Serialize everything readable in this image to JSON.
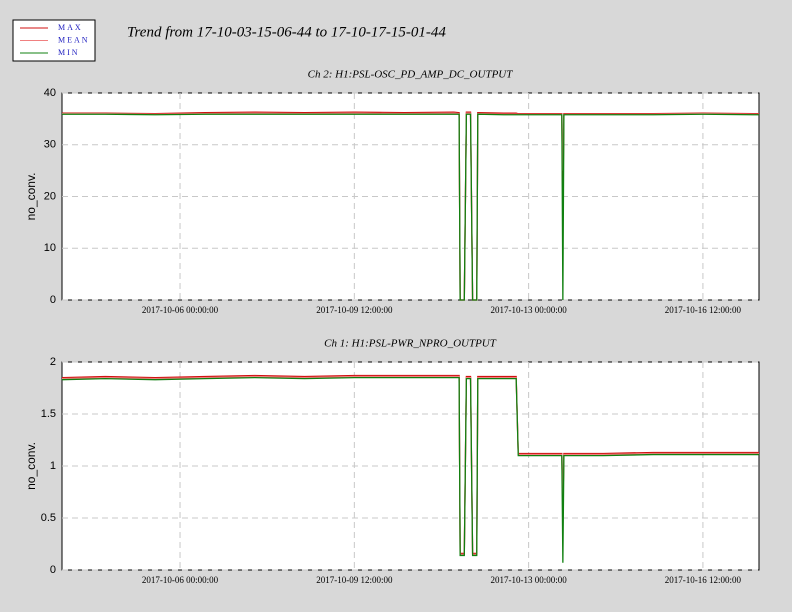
{
  "title": "Trend from 17-10-03-15-06-44 to 17-10-17-15-01-44",
  "chart_data": [
    {
      "type": "line",
      "title": "Ch 2: H1:PSL-OSC_PD_AMP_DC_OUTPUT",
      "y_label": "no_conv.",
      "x": [
        "2017-10-03 15:06:44",
        "2017-10-04 12:00:00",
        "2017-10-05 12:00:00",
        "2017-10-06 12:00:00",
        "2017-10-07 12:00:00",
        "2017-10-08 12:00:00",
        "2017-10-09 12:00:00",
        "2017-10-10 12:00:00",
        "2017-10-11 12:00:00",
        "2017-10-11 14:30:00",
        "2017-10-11 15:00:00",
        "2017-10-11 17:00:00",
        "2017-10-11 18:00:00",
        "2017-10-11 20:00:00",
        "2017-10-11 21:00:00",
        "2017-10-11 23:00:00",
        "2017-10-11 23:30:00",
        "2017-10-12 12:00:00",
        "2017-10-12 18:00:00",
        "2017-10-12 19:00:00",
        "2017-10-13 16:00:00",
        "2017-10-13 16:30:00",
        "2017-10-13 17:00:00",
        "2017-10-14 12:00:00",
        "2017-10-15 12:00:00",
        "2017-10-16 12:00:00",
        "2017-10-17 12:00:00",
        "2017-10-17 15:01:44"
      ],
      "series": [
        {
          "name": "MAX",
          "color": "#d01010",
          "values": [
            36.1,
            36.1,
            36.0,
            36.2,
            36.3,
            36.2,
            36.3,
            36.2,
            36.3,
            36.2,
            0,
            0,
            36.3,
            36.3,
            0,
            0,
            36.2,
            36.1,
            36.1,
            36.0,
            36.0,
            18,
            36.0,
            36.0,
            36.0,
            36.1,
            36.0,
            36.0
          ]
        },
        {
          "name": "MEAN",
          "color": "#f08080",
          "values": [
            36.0,
            36.0,
            35.9,
            36.0,
            36.1,
            36.0,
            36.1,
            36.0,
            36.1,
            36.0,
            0,
            0,
            36.1,
            36.1,
            0,
            0,
            36.0,
            35.9,
            35.9,
            35.9,
            35.9,
            25,
            35.9,
            35.9,
            35.9,
            36.0,
            35.9,
            35.9
          ]
        },
        {
          "name": "MIN",
          "color": "#108010",
          "values": [
            35.9,
            35.9,
            35.8,
            35.9,
            35.9,
            35.9,
            35.9,
            35.9,
            35.9,
            35.9,
            0,
            0,
            35.9,
            35.9,
            0,
            0,
            35.9,
            35.8,
            35.8,
            35.8,
            35.8,
            0,
            35.8,
            35.8,
            35.8,
            35.9,
            35.8,
            35.8
          ]
        }
      ],
      "xlim": [
        "2017-10-03 15:06:44",
        "2017-10-17 15:01:44"
      ],
      "xticks": [
        "2017-10-06 00:00:00",
        "2017-10-09 12:00:00",
        "2017-10-13 00:00:00",
        "2017-10-16 12:00:00"
      ],
      "ylim": [
        0,
        40
      ],
      "yticks": [
        0,
        10,
        20,
        30,
        40
      ],
      "grid": true
    },
    {
      "type": "line",
      "title": "Ch 1: H1:PSL-PWR_NPRO_OUTPUT",
      "y_label": "no_conv.",
      "x": [
        "2017-10-03 15:06:44",
        "2017-10-04 12:00:00",
        "2017-10-05 12:00:00",
        "2017-10-06 12:00:00",
        "2017-10-07 12:00:00",
        "2017-10-08 12:00:00",
        "2017-10-09 12:00:00",
        "2017-10-10 12:00:00",
        "2017-10-11 12:00:00",
        "2017-10-11 14:30:00",
        "2017-10-11 15:00:00",
        "2017-10-11 17:00:00",
        "2017-10-11 18:00:00",
        "2017-10-11 20:00:00",
        "2017-10-11 21:00:00",
        "2017-10-11 23:00:00",
        "2017-10-11 23:30:00",
        "2017-10-12 12:00:00",
        "2017-10-12 18:00:00",
        "2017-10-12 19:00:00",
        "2017-10-13 16:00:00",
        "2017-10-13 16:30:00",
        "2017-10-13 17:00:00",
        "2017-10-14 12:00:00",
        "2017-10-15 12:00:00",
        "2017-10-16 12:00:00",
        "2017-10-17 12:00:00",
        "2017-10-17 15:01:44"
      ],
      "series": [
        {
          "name": "MAX",
          "color": "#d01010",
          "values": [
            1.85,
            1.86,
            1.85,
            1.86,
            1.87,
            1.86,
            1.87,
            1.87,
            1.87,
            1.87,
            0.16,
            0.16,
            1.86,
            1.86,
            0.16,
            0.16,
            1.86,
            1.86,
            1.86,
            1.12,
            1.12,
            0.6,
            1.12,
            1.12,
            1.13,
            1.13,
            1.13,
            1.13
          ]
        },
        {
          "name": "MEAN",
          "color": "#f08080",
          "values": [
            1.84,
            1.85,
            1.84,
            1.85,
            1.86,
            1.85,
            1.86,
            1.86,
            1.86,
            1.86,
            0.15,
            0.15,
            1.85,
            1.85,
            0.15,
            0.15,
            1.85,
            1.85,
            1.85,
            1.11,
            1.11,
            0.6,
            1.11,
            1.11,
            1.12,
            1.12,
            1.12,
            1.12
          ]
        },
        {
          "name": "MIN",
          "color": "#108010",
          "values": [
            1.83,
            1.84,
            1.83,
            1.84,
            1.85,
            1.84,
            1.85,
            1.85,
            1.85,
            1.85,
            0.14,
            0.14,
            1.84,
            1.84,
            0.14,
            0.14,
            1.84,
            1.84,
            1.84,
            1.1,
            1.1,
            0.07,
            1.1,
            1.1,
            1.11,
            1.11,
            1.11,
            1.11
          ]
        }
      ],
      "xlim": [
        "2017-10-03 15:06:44",
        "2017-10-17 15:01:44"
      ],
      "xticks": [
        "2017-10-06 00:00:00",
        "2017-10-09 12:00:00",
        "2017-10-13 00:00:00",
        "2017-10-16 12:00:00"
      ],
      "ylim": [
        0,
        2
      ],
      "yticks": [
        0,
        0.5,
        1,
        1.5,
        2
      ],
      "grid": true
    }
  ]
}
